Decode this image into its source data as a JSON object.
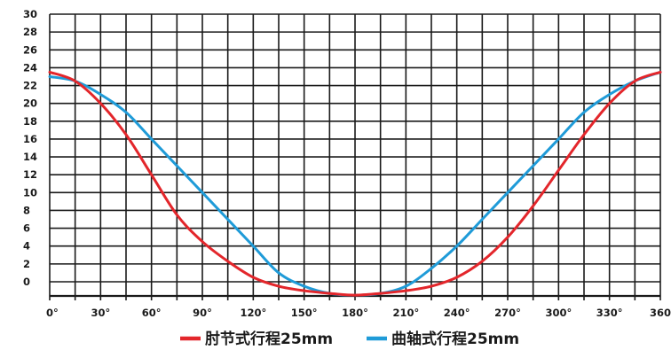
{
  "chart_data": {
    "type": "line",
    "x_ticks": [
      "0°",
      "30°",
      "60°",
      "90°",
      "120°",
      "150°",
      "180°",
      "210°",
      "240°",
      "270°",
      "300°",
      "330°",
      "360°"
    ],
    "y_ticks": [
      "0",
      "2",
      "4",
      "6",
      "8",
      "10",
      "12",
      "14",
      "16",
      "18",
      "20",
      "22",
      "24",
      "26",
      "28",
      "30"
    ],
    "xlim": [
      0,
      360
    ],
    "ylim": [
      -1.5,
      30
    ],
    "grid": true,
    "legend_position": "bottom-center",
    "series": [
      {
        "name": "肘节式行程25mm",
        "color": "#e3262b",
        "x": [
          0,
          15,
          30,
          45,
          60,
          75,
          90,
          105,
          120,
          135,
          150,
          165,
          180,
          195,
          210,
          225,
          240,
          255,
          270,
          285,
          300,
          315,
          330,
          345,
          360
        ],
        "y": [
          23.5,
          22.5,
          20.0,
          16.5,
          12.0,
          7.5,
          4.5,
          2.3,
          0.5,
          -0.5,
          -1.0,
          -1.3,
          -1.5,
          -1.3,
          -1.0,
          -0.5,
          0.5,
          2.3,
          5.0,
          8.5,
          12.5,
          16.5,
          20.0,
          22.5,
          23.5
        ]
      },
      {
        "name": "曲轴式行程25mm",
        "color": "#1f9bd8",
        "x": [
          0,
          15,
          30,
          45,
          60,
          75,
          90,
          105,
          120,
          135,
          150,
          165,
          180,
          195,
          210,
          225,
          240,
          255,
          270,
          285,
          300,
          315,
          330,
          345,
          360
        ],
        "y": [
          23.0,
          22.5,
          21.0,
          19.0,
          16.0,
          13.0,
          10.0,
          7.0,
          4.0,
          1.0,
          -0.5,
          -1.3,
          -1.5,
          -1.3,
          -0.5,
          1.5,
          4.0,
          7.0,
          10.0,
          13.0,
          16.0,
          19.0,
          21.0,
          22.5,
          23.5
        ]
      }
    ]
  }
}
